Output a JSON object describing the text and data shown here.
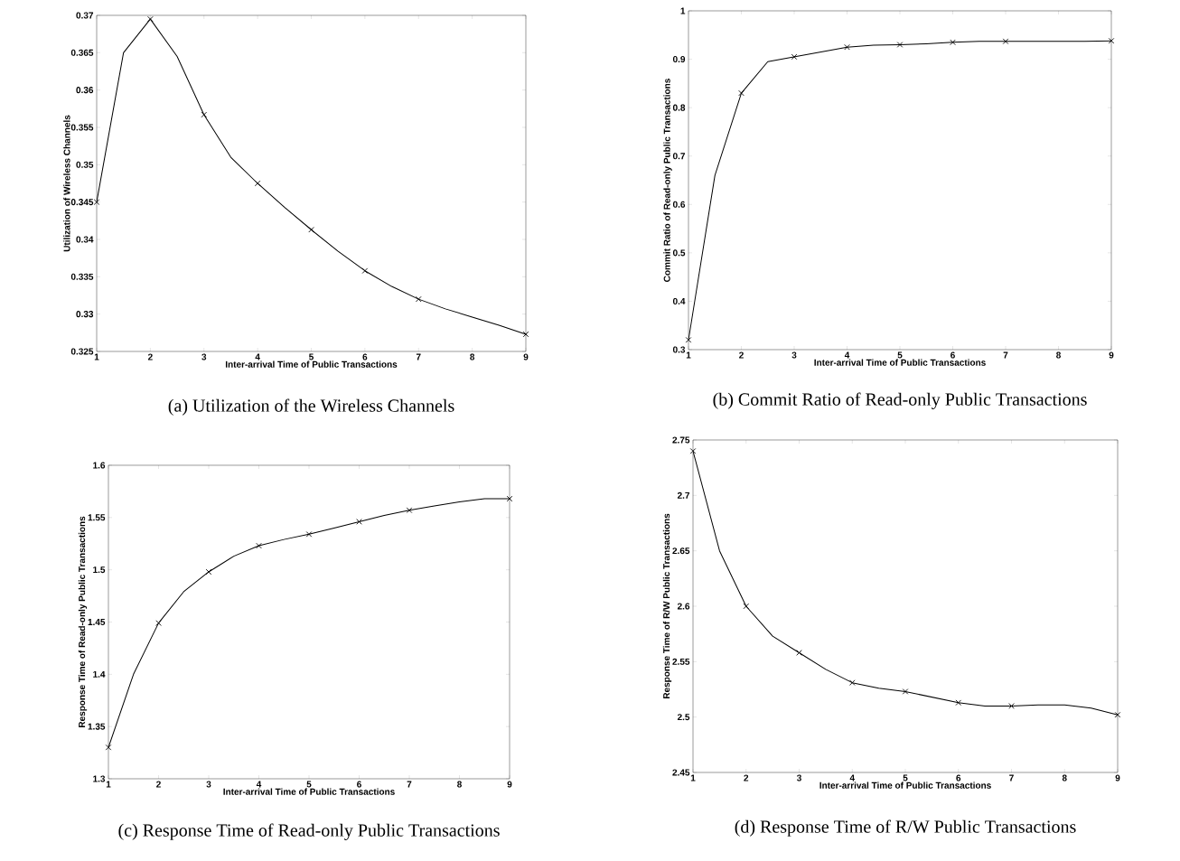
{
  "chart_data": [
    {
      "type": "line",
      "title": "(a) Utilization of the Wireless Channels",
      "xlabel": "Inter-arrival Time of Public Transactions",
      "ylabel": "Utilization of Wireless Channels",
      "xlim": [
        1,
        9
      ],
      "xticks": [
        1,
        2,
        3,
        4,
        5,
        6,
        7,
        8,
        9
      ],
      "ylim": [
        0.325,
        0.37
      ],
      "yticks": [
        0.325,
        0.33,
        0.335,
        0.34,
        0.345,
        0.35,
        0.355,
        0.36,
        0.365,
        0.37
      ],
      "series": [
        {
          "type": "line",
          "color": "#000000",
          "marker": "none",
          "line_style": "solid",
          "x": [
            1,
            1.5,
            2,
            2.5,
            3,
            3.5,
            4,
            4.5,
            5,
            5.5,
            6,
            6.5,
            7,
            7.5,
            8,
            8.5,
            9
          ],
          "values": [
            0.345,
            0.365,
            0.3695,
            0.3645,
            0.3567,
            0.351,
            0.3475,
            0.3443,
            0.3413,
            0.3384,
            0.3358,
            0.3337,
            0.332,
            0.3307,
            0.3296,
            0.3285,
            0.3273
          ]
        },
        {
          "type": "scatter",
          "color": "#000000",
          "marker": "cross",
          "x": [
            1,
            2,
            3,
            4,
            5,
            6,
            7,
            9
          ],
          "values": [
            0.345,
            0.3695,
            0.3567,
            0.3475,
            0.3413,
            0.3358,
            0.332,
            0.3273
          ]
        }
      ]
    },
    {
      "type": "line",
      "title": "(b) Commit Ratio of Read-only Public Transactions",
      "xlabel": "Inter-arrival Time of Public Transactions",
      "ylabel": "Commit Ratio of Read-only Public Transactions",
      "xlim": [
        1,
        9
      ],
      "xticks": [
        1,
        2,
        3,
        4,
        5,
        6,
        7,
        8,
        9
      ],
      "ylim": [
        0.3,
        1
      ],
      "yticks": [
        0.3,
        0.4,
        0.5,
        0.6,
        0.7,
        0.8,
        0.9,
        1
      ],
      "series": [
        {
          "type": "line",
          "color": "#000000",
          "marker": "none",
          "line_style": "solid",
          "x": [
            1,
            1.5,
            2,
            2.5,
            3,
            3.5,
            4,
            4.5,
            5,
            5.5,
            6,
            6.5,
            7,
            7.5,
            8,
            8.5,
            9
          ],
          "values": [
            0.32,
            0.66,
            0.83,
            0.895,
            0.905,
            0.915,
            0.925,
            0.929,
            0.93,
            0.932,
            0.935,
            0.937,
            0.937,
            0.937,
            0.937,
            0.937,
            0.938
          ]
        },
        {
          "type": "scatter",
          "color": "#000000",
          "marker": "cross",
          "x": [
            1,
            2,
            3,
            4,
            5,
            6,
            7,
            9
          ],
          "values": [
            0.32,
            0.83,
            0.905,
            0.925,
            0.93,
            0.935,
            0.937,
            0.938
          ]
        }
      ]
    },
    {
      "type": "line",
      "title": "(c) Response Time of Read-only Public Transactions",
      "xlabel": "Inter-arrival Time of Public Transactions",
      "ylabel": "Response Time of Read-only Public Transactions",
      "xlim": [
        1,
        9
      ],
      "xticks": [
        1,
        2,
        3,
        4,
        5,
        6,
        7,
        8,
        9
      ],
      "ylim": [
        1.3,
        1.6
      ],
      "yticks": [
        1.3,
        1.35,
        1.4,
        1.45,
        1.5,
        1.55,
        1.6
      ],
      "series": [
        {
          "type": "line",
          "color": "#000000",
          "marker": "none",
          "line_style": "solid",
          "x": [
            1,
            1.5,
            2,
            2.5,
            3,
            3.5,
            4,
            4.5,
            5,
            5.5,
            6,
            6.5,
            7,
            7.5,
            8,
            8.5,
            9
          ],
          "values": [
            1.33,
            1.4,
            1.449,
            1.479,
            1.498,
            1.513,
            1.523,
            1.529,
            1.534,
            1.54,
            1.546,
            1.552,
            1.557,
            1.561,
            1.565,
            1.568,
            1.568
          ]
        },
        {
          "type": "scatter",
          "color": "#000000",
          "marker": "cross",
          "x": [
            1,
            2,
            3,
            4,
            5,
            6,
            7,
            9
          ],
          "values": [
            1.33,
            1.449,
            1.498,
            1.523,
            1.534,
            1.546,
            1.557,
            1.568
          ]
        }
      ]
    },
    {
      "type": "line",
      "title": "(d) Response Time of R/W Public Transactions",
      "xlabel": "Inter-arrival Time of Public Transactions",
      "ylabel": "Response Time of R/W Public Transactions",
      "xlim": [
        1,
        9
      ],
      "xticks": [
        1,
        2,
        3,
        4,
        5,
        6,
        7,
        8,
        9
      ],
      "ylim": [
        2.45,
        2.75
      ],
      "yticks": [
        2.45,
        2.5,
        2.55,
        2.6,
        2.65,
        2.7,
        2.75
      ],
      "series": [
        {
          "type": "line",
          "color": "#000000",
          "marker": "none",
          "line_style": "solid",
          "x": [
            1,
            1.5,
            2,
            2.5,
            3,
            3.5,
            4,
            4.5,
            5,
            5.5,
            6,
            6.5,
            7,
            7.5,
            8,
            8.5,
            9
          ],
          "values": [
            2.74,
            2.65,
            2.6,
            2.573,
            2.558,
            2.543,
            2.531,
            2.526,
            2.523,
            2.518,
            2.513,
            2.51,
            2.51,
            2.511,
            2.511,
            2.508,
            2.502
          ]
        },
        {
          "type": "scatter",
          "color": "#000000",
          "marker": "cross",
          "x": [
            1,
            2,
            3,
            4,
            5,
            6,
            7,
            9
          ],
          "values": [
            2.74,
            2.6,
            2.558,
            2.531,
            2.523,
            2.513,
            2.51,
            2.502
          ]
        }
      ]
    }
  ]
}
